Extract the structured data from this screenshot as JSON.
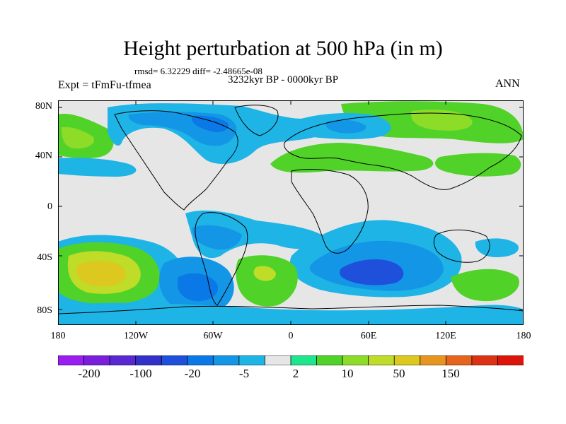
{
  "title": "Height perturbation at 500 hPa (in m)",
  "stats": "rmsd= 6.32229 diff= -2.48665e-08",
  "period": "3232kyr BP - 0000kyr BP",
  "experiment": "Expt = tFmFu-tfmea",
  "season": "ANN",
  "map": {
    "lat_labels": [
      "80N",
      "40N",
      "0",
      "40S",
      "80S"
    ],
    "lon_labels": [
      "180",
      "120W",
      "60W",
      "0",
      "60E",
      "120E",
      "180"
    ],
    "background_color": "#e6e6e6"
  },
  "colorbar": {
    "colors": [
      "#9a1ef0",
      "#7a1edc",
      "#5a28d2",
      "#3232c8",
      "#1e50dc",
      "#0a78e6",
      "#1496e6",
      "#1eb4e6",
      "#e6e6e6",
      "#1ee68c",
      "#50d228",
      "#8cdc28",
      "#bedc28",
      "#dcc81e",
      "#e6961e",
      "#e6641e",
      "#dc3214",
      "#dc140a"
    ],
    "labels": [
      "-200",
      "-100",
      "-20",
      "-5",
      "2",
      "10",
      "50",
      "150"
    ]
  },
  "fields": [
    {
      "name": "west-north-america-negative",
      "color": "#1eb4e6"
    },
    {
      "name": "north-pacific-positive",
      "color": "#50d228"
    },
    {
      "name": "canada-atlantic-negative",
      "color": "#1496e6"
    },
    {
      "name": "siberia-positive",
      "color": "#50d228"
    },
    {
      "name": "south-pacific-positive",
      "color": "#dcc81e"
    },
    {
      "name": "south-atlantic-negative",
      "color": "#0a78e6"
    },
    {
      "name": "indian-ocean-negative",
      "color": "#1e50dc"
    }
  ]
}
